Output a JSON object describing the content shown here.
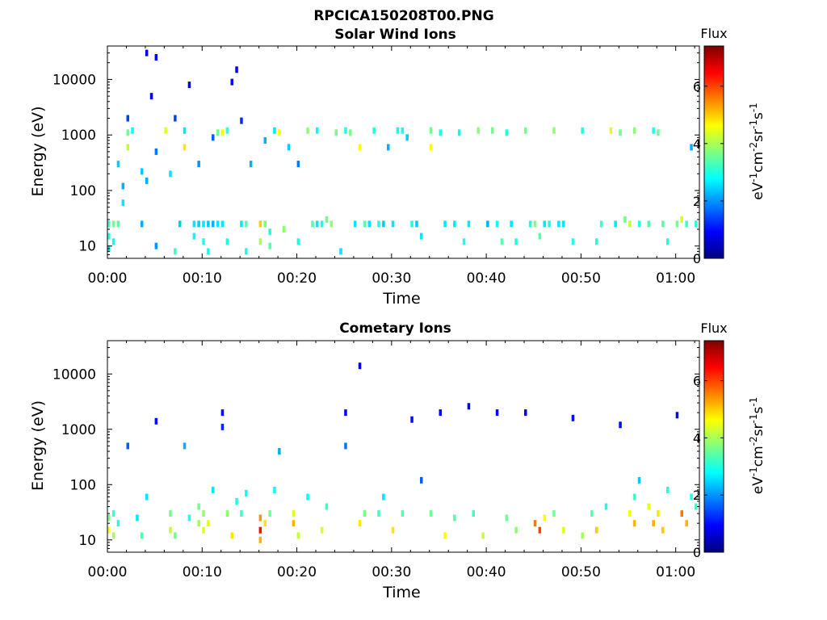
{
  "figure": {
    "title": "RPCICA150208T00.PNG"
  },
  "colorbar": {
    "title": "Flux",
    "label_parts": [
      "eV",
      "-1",
      "cm",
      "-2",
      "sr",
      "-1",
      "s",
      "-1"
    ],
    "ticks": [
      0,
      2,
      4,
      6
    ],
    "range": [
      0,
      7.4
    ],
    "colormap": "jet"
  },
  "chart_data": [
    {
      "type": "heatmap",
      "title": "Solar Wind Ions",
      "xlabel": "Time",
      "ylabel": "Energy (eV)",
      "yscale": "log",
      "ylim": [
        6,
        40000
      ],
      "xlim_minutes": [
        0,
        62.5
      ],
      "xticks_minutes": [
        0,
        10,
        20,
        30,
        40,
        50,
        60
      ],
      "xtick_labels": [
        "00:00",
        "00:10",
        "00:20",
        "00:30",
        "00:40",
        "00:50",
        "01:00"
      ],
      "yticks": [
        10,
        100,
        1000,
        10000
      ],
      "ytick_labels": [
        "10",
        "100",
        "1000",
        "10000"
      ],
      "value_label": "Flux",
      "cell_minutes": 0.5,
      "cells": [
        [
          0.0,
          25,
          3.2
        ],
        [
          0.0,
          15,
          3.0
        ],
        [
          0.0,
          9,
          2.6
        ],
        [
          0.5,
          25,
          3.6
        ],
        [
          0.5,
          12,
          2.8
        ],
        [
          1.0,
          25,
          3.4
        ],
        [
          1.0,
          300,
          2.4
        ],
        [
          1.5,
          60,
          2.6
        ],
        [
          1.5,
          120,
          2.2
        ],
        [
          2.0,
          600,
          4.2
        ],
        [
          2.0,
          1100,
          3.6
        ],
        [
          2.5,
          1200,
          2.8
        ],
        [
          2.0,
          2000,
          1.4
        ],
        [
          3.5,
          25,
          2.2
        ],
        [
          3.5,
          220,
          2.4
        ],
        [
          4.0,
          150,
          2.2
        ],
        [
          4.0,
          30000,
          0.8
        ],
        [
          4.5,
          5000,
          0.9
        ],
        [
          5.0,
          25000,
          0.9
        ],
        [
          5.0,
          500,
          1.8
        ],
        [
          5.0,
          10,
          2.0
        ],
        [
          6.0,
          1200,
          4.4
        ],
        [
          6.5,
          200,
          2.6
        ],
        [
          7.0,
          8,
          3.2
        ],
        [
          7.0,
          2000,
          1.4
        ],
        [
          7.5,
          25,
          2.4
        ],
        [
          8.0,
          600,
          4.8
        ],
        [
          8.0,
          1200,
          2.6
        ],
        [
          8.5,
          8000,
          0.9
        ],
        [
          9.0,
          25,
          2.6
        ],
        [
          9.0,
          15,
          2.8
        ],
        [
          9.5,
          25,
          2.4
        ],
        [
          9.5,
          300,
          2.0
        ],
        [
          10.0,
          25,
          2.6
        ],
        [
          10.0,
          12,
          3.0
        ],
        [
          10.5,
          25,
          2.4
        ],
        [
          10.5,
          8,
          3.0
        ],
        [
          11.0,
          25,
          2.2
        ],
        [
          11.0,
          900,
          1.6
        ],
        [
          11.5,
          1100,
          3.6
        ],
        [
          11.5,
          25,
          2.6
        ],
        [
          12.0,
          1100,
          4.6
        ],
        [
          12.0,
          25,
          2.6
        ],
        [
          12.5,
          1200,
          3.2
        ],
        [
          12.5,
          12,
          3.0
        ],
        [
          13.0,
          9000,
          0.9
        ],
        [
          13.5,
          15000,
          0.8
        ],
        [
          14.0,
          1800,
          1.2
        ],
        [
          14.0,
          25,
          2.6
        ],
        [
          14.5,
          25,
          3.4
        ],
        [
          14.5,
          8,
          3.0
        ],
        [
          15.0,
          300,
          2.2
        ],
        [
          16.0,
          25,
          5.0
        ],
        [
          16.0,
          12,
          4.0
        ],
        [
          16.5,
          25,
          3.6
        ],
        [
          16.5,
          800,
          2.2
        ],
        [
          17.0,
          18,
          3.0
        ],
        [
          17.0,
          10,
          3.4
        ],
        [
          17.5,
          1200,
          2.6
        ],
        [
          18.0,
          1100,
          4.6
        ],
        [
          18.5,
          20,
          3.8
        ],
        [
          19.0,
          600,
          2.4
        ],
        [
          20.0,
          12,
          3.0
        ],
        [
          20.0,
          300,
          1.8
        ],
        [
          21.0,
          1200,
          3.8
        ],
        [
          21.5,
          25,
          3.4
        ],
        [
          22.0,
          25,
          2.6
        ],
        [
          22.0,
          1200,
          2.8
        ],
        [
          22.5,
          25,
          3.0
        ],
        [
          23.0,
          30,
          3.6
        ],
        [
          23.5,
          25,
          3.8
        ],
        [
          24.0,
          1100,
          3.6
        ],
        [
          24.5,
          8,
          2.6
        ],
        [
          25.0,
          1200,
          3.0
        ],
        [
          25.5,
          1100,
          3.6
        ],
        [
          26.0,
          25,
          2.6
        ],
        [
          26.5,
          600,
          4.6
        ],
        [
          27.0,
          25,
          3.4
        ],
        [
          27.5,
          25,
          2.6
        ],
        [
          28.0,
          1200,
          3.0
        ],
        [
          28.5,
          25,
          3.0
        ],
        [
          29.0,
          25,
          2.4
        ],
        [
          29.5,
          600,
          2.2
        ],
        [
          30.0,
          25,
          2.6
        ],
        [
          30.5,
          1200,
          2.8
        ],
        [
          31.0,
          1200,
          3.0
        ],
        [
          31.5,
          900,
          2.4
        ],
        [
          32.0,
          25,
          3.0
        ],
        [
          32.5,
          25,
          2.4
        ],
        [
          33.0,
          15,
          2.6
        ],
        [
          34.0,
          600,
          4.6
        ],
        [
          34.0,
          1200,
          3.6
        ],
        [
          35.0,
          1100,
          3.0
        ],
        [
          35.5,
          25,
          2.6
        ],
        [
          36.5,
          25,
          2.6
        ],
        [
          37.0,
          1100,
          2.8
        ],
        [
          37.5,
          12,
          3.0
        ],
        [
          38.0,
          25,
          2.6
        ],
        [
          39.0,
          1200,
          3.8
        ],
        [
          40.0,
          25,
          2.2
        ],
        [
          40.5,
          1200,
          3.6
        ],
        [
          41.0,
          25,
          2.8
        ],
        [
          41.5,
          12,
          3.4
        ],
        [
          42.0,
          1100,
          3.0
        ],
        [
          42.5,
          25,
          2.6
        ],
        [
          43.0,
          12,
          3.0
        ],
        [
          44.0,
          1200,
          3.6
        ],
        [
          44.5,
          25,
          3.0
        ],
        [
          45.0,
          25,
          3.8
        ],
        [
          45.5,
          15,
          3.4
        ],
        [
          46.0,
          25,
          2.6
        ],
        [
          46.5,
          25,
          3.0
        ],
        [
          47.0,
          1200,
          3.8
        ],
        [
          47.5,
          25,
          2.6
        ],
        [
          48.0,
          25,
          2.6
        ],
        [
          49.0,
          12,
          3.0
        ],
        [
          50.0,
          1200,
          3.0
        ],
        [
          51.5,
          12,
          3.0
        ],
        [
          52.0,
          25,
          3.2
        ],
        [
          53.0,
          1200,
          4.4
        ],
        [
          53.5,
          25,
          2.6
        ],
        [
          54.0,
          1100,
          3.6
        ],
        [
          54.5,
          30,
          3.6
        ],
        [
          55.0,
          25,
          4.2
        ],
        [
          55.5,
          1200,
          3.8
        ],
        [
          56.0,
          25,
          3.0
        ],
        [
          57.0,
          25,
          3.4
        ],
        [
          57.5,
          1200,
          3.0
        ],
        [
          58.0,
          1100,
          3.6
        ],
        [
          58.5,
          25,
          3.4
        ],
        [
          59.0,
          12,
          3.0
        ],
        [
          60.0,
          25,
          3.6
        ],
        [
          60.5,
          30,
          4.4
        ],
        [
          61.0,
          25,
          3.2
        ],
        [
          61.5,
          600,
          2.2
        ],
        [
          62.0,
          25,
          3.0
        ]
      ]
    },
    {
      "type": "heatmap",
      "title": "Cometary Ions",
      "xlabel": "Time",
      "ylabel": "Energy (eV)",
      "yscale": "log",
      "ylim": [
        6,
        40000
      ],
      "xlim_minutes": [
        0,
        62.5
      ],
      "xticks_minutes": [
        0,
        10,
        20,
        30,
        40,
        50,
        60
      ],
      "xtick_labels": [
        "00:00",
        "00:10",
        "00:20",
        "00:30",
        "00:40",
        "00:50",
        "01:00"
      ],
      "yticks": [
        10,
        100,
        1000,
        10000
      ],
      "ytick_labels": [
        "10",
        "100",
        "1000",
        "10000"
      ],
      "value_label": "Flux",
      "cell_minutes": 0.5,
      "cells": [
        [
          0.0,
          15,
          4.6
        ],
        [
          0.0,
          25,
          3.6
        ],
        [
          0.5,
          12,
          4.0
        ],
        [
          0.5,
          30,
          3.2
        ],
        [
          1.0,
          20,
          3.0
        ],
        [
          2.0,
          500,
          1.6
        ],
        [
          3.0,
          25,
          2.6
        ],
        [
          3.5,
          12,
          3.4
        ],
        [
          4.0,
          60,
          2.6
        ],
        [
          5.0,
          1400,
          1.0
        ],
        [
          6.5,
          15,
          4.2
        ],
        [
          6.5,
          30,
          3.6
        ],
        [
          7.0,
          12,
          3.6
        ],
        [
          8.0,
          500,
          2.2
        ],
        [
          8.5,
          25,
          3.0
        ],
        [
          9.5,
          20,
          4.0
        ],
        [
          9.5,
          40,
          3.6
        ],
        [
          10.0,
          15,
          4.4
        ],
        [
          10.0,
          30,
          3.8
        ],
        [
          10.5,
          20,
          4.4
        ],
        [
          11.0,
          80,
          2.6
        ],
        [
          12.0,
          2000,
          1.0
        ],
        [
          12.0,
          1100,
          1.2
        ],
        [
          12.5,
          30,
          3.8
        ],
        [
          13.0,
          12,
          4.8
        ],
        [
          13.5,
          50,
          3.0
        ],
        [
          14.0,
          30,
          3.2
        ],
        [
          14.5,
          70,
          2.8
        ],
        [
          16.0,
          15,
          6.4
        ],
        [
          16.0,
          25,
          5.4
        ],
        [
          16.0,
          10,
          5.2
        ],
        [
          16.5,
          20,
          4.8
        ],
        [
          17.0,
          30,
          3.6
        ],
        [
          17.5,
          80,
          2.8
        ],
        [
          18.0,
          400,
          2.2
        ],
        [
          19.5,
          20,
          5.2
        ],
        [
          19.5,
          30,
          4.4
        ],
        [
          20.0,
          12,
          4.2
        ],
        [
          21.0,
          60,
          2.8
        ],
        [
          22.5,
          15,
          4.4
        ],
        [
          23.0,
          40,
          3.2
        ],
        [
          25.0,
          2000,
          0.9
        ],
        [
          25.0,
          500,
          1.8
        ],
        [
          26.5,
          14000,
          0.8
        ],
        [
          26.5,
          20,
          4.8
        ],
        [
          27.0,
          30,
          3.6
        ],
        [
          28.5,
          30,
          3.2
        ],
        [
          29.0,
          60,
          2.6
        ],
        [
          30.0,
          15,
          4.8
        ],
        [
          31.0,
          30,
          3.4
        ],
        [
          32.0,
          1500,
          1.0
        ],
        [
          33.0,
          120,
          1.6
        ],
        [
          34.0,
          30,
          3.6
        ],
        [
          35.0,
          2000,
          0.9
        ],
        [
          35.5,
          12,
          4.6
        ],
        [
          36.5,
          25,
          3.4
        ],
        [
          38.0,
          2600,
          0.9
        ],
        [
          38.5,
          30,
          3.2
        ],
        [
          39.5,
          12,
          4.2
        ],
        [
          41.0,
          2000,
          0.9
        ],
        [
          42.0,
          25,
          3.6
        ],
        [
          43.0,
          15,
          3.8
        ],
        [
          44.0,
          2000,
          0.9
        ],
        [
          45.0,
          20,
          5.6
        ],
        [
          45.5,
          15,
          6.0
        ],
        [
          46.0,
          25,
          4.6
        ],
        [
          47.0,
          30,
          3.6
        ],
        [
          48.0,
          15,
          4.4
        ],
        [
          49.0,
          1600,
          1.0
        ],
        [
          50.0,
          12,
          4.0
        ],
        [
          51.0,
          30,
          3.4
        ],
        [
          51.5,
          15,
          5.0
        ],
        [
          52.5,
          40,
          3.0
        ],
        [
          54.0,
          1200,
          1.0
        ],
        [
          55.0,
          30,
          4.6
        ],
        [
          55.5,
          20,
          5.2
        ],
        [
          55.5,
          60,
          3.2
        ],
        [
          56.0,
          120,
          2.4
        ],
        [
          57.0,
          40,
          4.4
        ],
        [
          57.5,
          20,
          5.2
        ],
        [
          58.0,
          30,
          4.8
        ],
        [
          58.5,
          15,
          5.0
        ],
        [
          59.0,
          80,
          3.0
        ],
        [
          60.0,
          1800,
          1.0
        ],
        [
          60.5,
          30,
          5.6
        ],
        [
          61.0,
          20,
          5.2
        ],
        [
          61.5,
          60,
          3.0
        ],
        [
          62.0,
          40,
          3.2
        ]
      ]
    }
  ]
}
